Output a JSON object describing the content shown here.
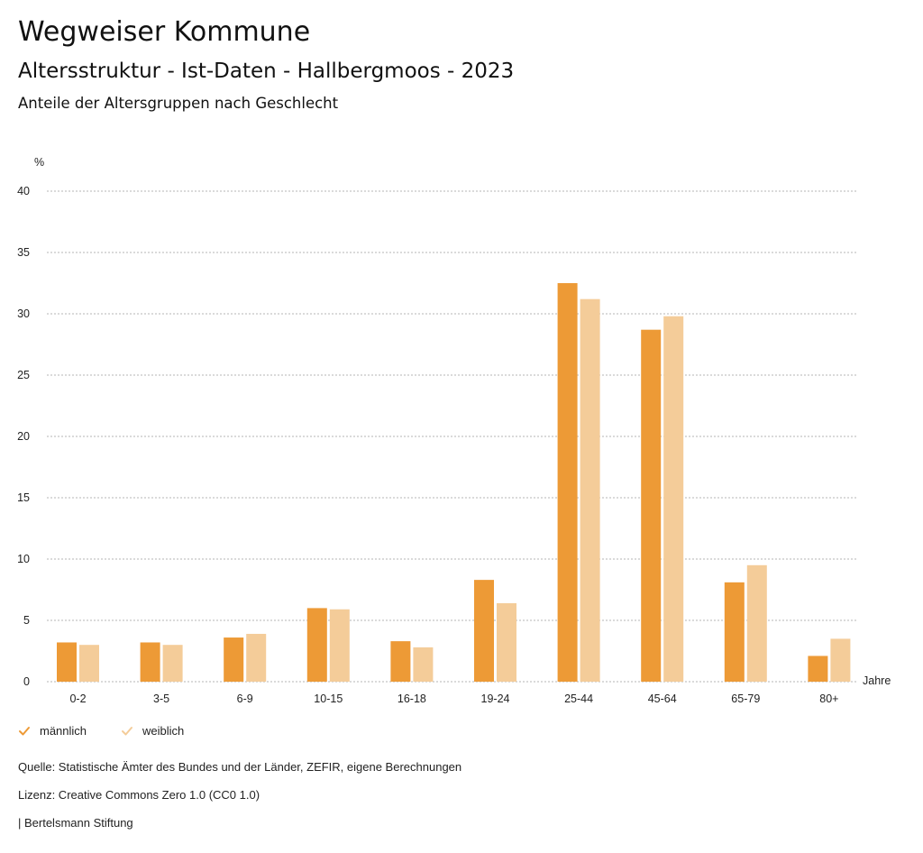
{
  "header": {
    "title": "Wegweiser Kommune",
    "subtitle": "Altersstruktur - Ist-Daten - Hallbergmoos - 2023",
    "subsubtitle": "Anteile der Altersgruppen nach Geschlecht"
  },
  "chart_data": {
    "type": "bar",
    "title": "Anteile der Altersgruppen nach Geschlecht",
    "xlabel": "Jahre",
    "ylabel": "%",
    "ylim": [
      0,
      40
    ],
    "yticks": [
      0,
      5,
      10,
      15,
      20,
      25,
      30,
      35,
      40
    ],
    "grid": true,
    "legend_position": "bottom-left",
    "categories": [
      "0-2",
      "3-5",
      "6-9",
      "10-15",
      "16-18",
      "19-24",
      "25-44",
      "45-64",
      "65-79",
      "80+"
    ],
    "series": [
      {
        "name": "männlich",
        "color": "#ED9A36",
        "values": [
          3.2,
          3.2,
          3.6,
          6.0,
          3.3,
          8.3,
          32.5,
          28.7,
          8.1,
          2.1
        ]
      },
      {
        "name": "weiblich",
        "color": "#F4CC99",
        "values": [
          3.0,
          3.0,
          3.9,
          5.9,
          2.8,
          6.4,
          31.2,
          29.8,
          9.5,
          3.5
        ]
      }
    ]
  },
  "legend": [
    {
      "label": "männlich",
      "color": "#ED9A36",
      "icon": "check-icon"
    },
    {
      "label": "weiblich",
      "color": "#F4CC99",
      "icon": "check-icon"
    }
  ],
  "footer": {
    "source": "Quelle: Statistische Ämter des Bundes und der Länder, ZEFIR, eigene Berechnungen",
    "license": "Lizenz: Creative Commons Zero 1.0 (CC0 1.0)",
    "publisher": "| Bertelsmann Stiftung"
  }
}
